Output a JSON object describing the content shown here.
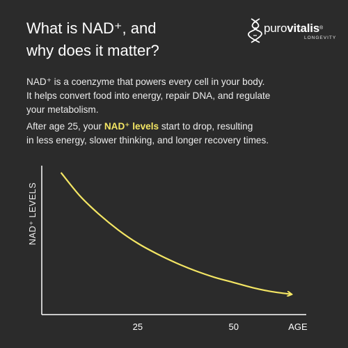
{
  "headline": {
    "line1": "What is NAD⁺, and",
    "line2": "why does it matter?"
  },
  "logo": {
    "word_light": "puro",
    "word_bold": "vitalis",
    "registered": "®",
    "tagline": "LONGEVITY",
    "icon": "dna-helix-icon"
  },
  "paragraph1": {
    "lines": [
      "NAD⁺ is a coenzyme that powers every cell in your body.",
      "It helps convert food into energy, repair DNA, and regulate",
      "your metabolism."
    ]
  },
  "paragraph2": {
    "line1_before": "After age 25, your ",
    "line1_highlight": "NAD⁺ levels",
    "line1_after": " start to drop, resulting",
    "line2": "in less energy, slower thinking, and longer recovery times."
  },
  "colors": {
    "background": "#2b2b2b",
    "text": "#ffffff",
    "accent": "#f4e664"
  },
  "chart_data": {
    "type": "line",
    "ylabel": "NAD⁺ LEVELS",
    "xlabel": "AGE",
    "x_ticks": [
      "25",
      "50"
    ],
    "x_tick_values": [
      25,
      50
    ],
    "xlim": [
      0,
      70
    ],
    "series": [
      {
        "color": "#f4e664",
        "x": [
          5,
          10,
          15,
          20,
          25,
          30,
          35,
          40,
          45,
          50,
          55,
          60,
          65
        ],
        "y": [
          1.0,
          0.82,
          0.68,
          0.56,
          0.46,
          0.38,
          0.31,
          0.25,
          0.2,
          0.16,
          0.12,
          0.09,
          0.07
        ]
      }
    ],
    "arrow_end": true,
    "grid": false
  }
}
